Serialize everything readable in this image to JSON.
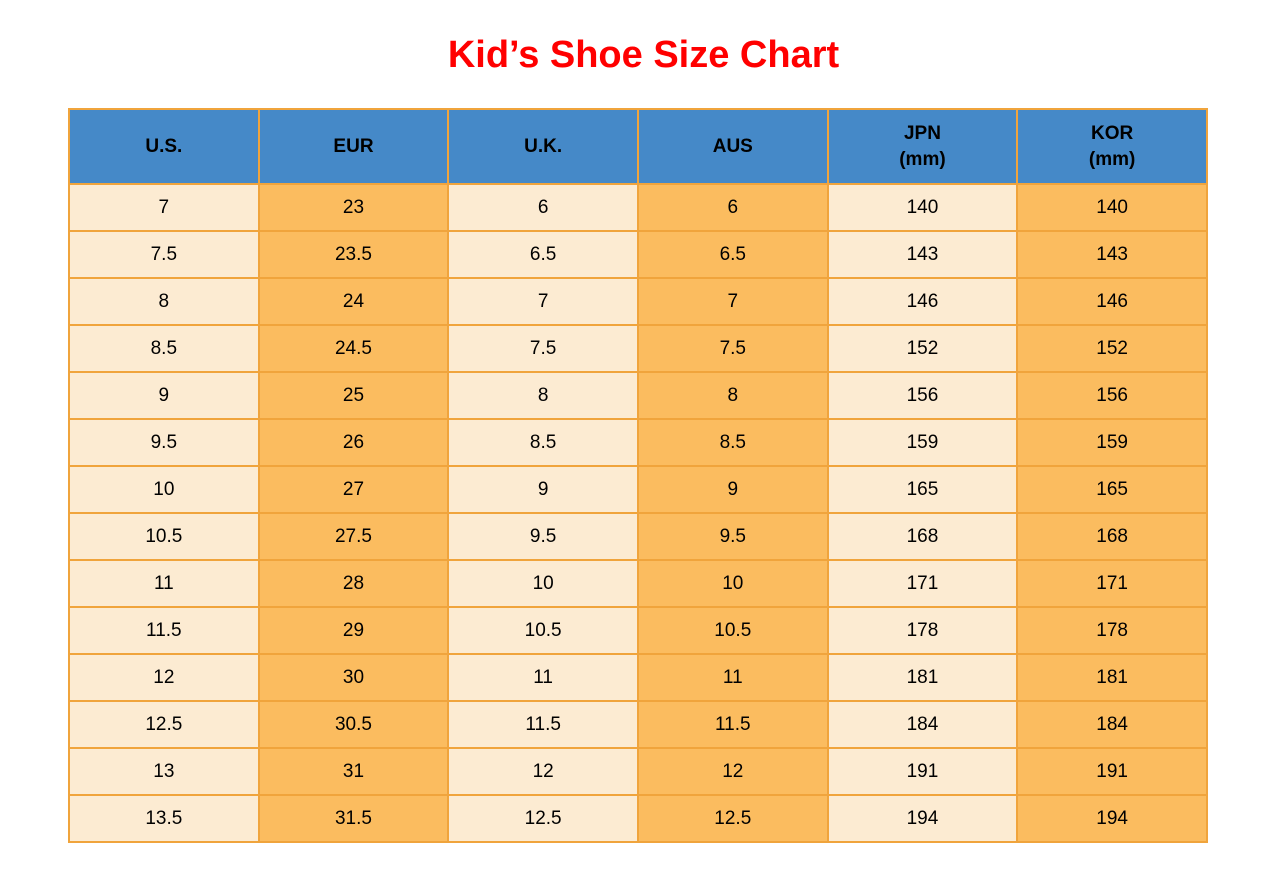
{
  "title": "Kid’s Shoe Size Chart",
  "colors": {
    "title_text": "#FF0000",
    "header_bg": "#4589C8",
    "cell_light_bg": "#FCEBD2",
    "cell_orange_bg": "#FBBC5F",
    "grid_border": "#F0A43C",
    "cell_text": "#000000",
    "page_bg": "#FFFFFF"
  },
  "chart_data": {
    "type": "table",
    "title": "Kid’s Shoe Size Chart",
    "columns": [
      {
        "label": "U.S.",
        "sub": ""
      },
      {
        "label": "EUR",
        "sub": ""
      },
      {
        "label": "U.K.",
        "sub": ""
      },
      {
        "label": "AUS",
        "sub": ""
      },
      {
        "label": "JPN",
        "sub": "(mm)"
      },
      {
        "label": "KOR",
        "sub": "(mm)"
      }
    ],
    "rows": [
      [
        7,
        23,
        6,
        6,
        140,
        140
      ],
      [
        7.5,
        23.5,
        6.5,
        6.5,
        143,
        143
      ],
      [
        8,
        24,
        7,
        7,
        146,
        146
      ],
      [
        8.5,
        24.5,
        7.5,
        7.5,
        152,
        152
      ],
      [
        9,
        25,
        8,
        8,
        156,
        156
      ],
      [
        9.5,
        26,
        8.5,
        8.5,
        159,
        159
      ],
      [
        10,
        27,
        9,
        9,
        165,
        165
      ],
      [
        10.5,
        27.5,
        9.5,
        9.5,
        168,
        168
      ],
      [
        11,
        28,
        10,
        10,
        171,
        171
      ],
      [
        11.5,
        29,
        10.5,
        10.5,
        178,
        178
      ],
      [
        12,
        30,
        11,
        11,
        181,
        181
      ],
      [
        12.5,
        30.5,
        11.5,
        11.5,
        184,
        184
      ],
      [
        13,
        31,
        12,
        12,
        191,
        191
      ],
      [
        13.5,
        31.5,
        12.5,
        12.5,
        194,
        194
      ]
    ],
    "layout": {
      "column_color_pattern": [
        "light",
        "orange",
        "light",
        "orange",
        "light",
        "orange"
      ],
      "header_style": "blue-bold",
      "grid": true
    }
  }
}
